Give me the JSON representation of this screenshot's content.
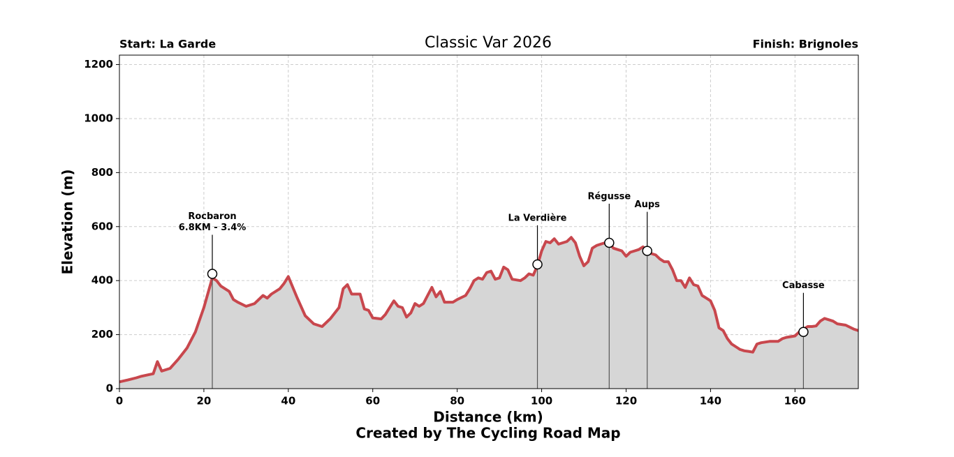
{
  "chart_data": {
    "type": "area-line",
    "title": "Classic Var 2026",
    "start_label": "Start: La Garde",
    "finish_label": "Finish: Brignoles",
    "x_label": "Distance (km)",
    "y_label": "Elevation (m)",
    "footer": "Created by The Cycling Road Map",
    "line_color": "#c8474d",
    "fill_color": "#d6d6d6",
    "grid": true,
    "xlim": [
      0,
      175
    ],
    "ylim": [
      0,
      1235
    ],
    "xticks": [
      0,
      20,
      40,
      60,
      80,
      100,
      120,
      140,
      160
    ],
    "yticks": [
      0,
      200,
      400,
      600,
      800,
      1000,
      1200
    ],
    "x": [
      0,
      2,
      4,
      5,
      7,
      8,
      9,
      10,
      12,
      14,
      16,
      18,
      20,
      22,
      23,
      24,
      26,
      27,
      28,
      30,
      32,
      34,
      35,
      36,
      38,
      39,
      40,
      42,
      44,
      46,
      48,
      50,
      52,
      53,
      54,
      55,
      57,
      58,
      59,
      60,
      62,
      63,
      64,
      65,
      66,
      67,
      68,
      69,
      70,
      71,
      72,
      73,
      74,
      75,
      76,
      77,
      78,
      79,
      80,
      82,
      83,
      84,
      85,
      86,
      87,
      88,
      89,
      90,
      91,
      92,
      93,
      95,
      96,
      97,
      98,
      99,
      100,
      101,
      102,
      103,
      104,
      106,
      107,
      108,
      109,
      110,
      111,
      112,
      113,
      114,
      115,
      116,
      117,
      118,
      119,
      120,
      121,
      122,
      123,
      124,
      125,
      126,
      127,
      128,
      129,
      130,
      131,
      132,
      133,
      134,
      135,
      136,
      137,
      138,
      139,
      140,
      141,
      142,
      143,
      144,
      145,
      146,
      147,
      148,
      149,
      150,
      151,
      152,
      154,
      156,
      157,
      158,
      160,
      161,
      162,
      163,
      164,
      165,
      166,
      167,
      168,
      169,
      170,
      172,
      174,
      175
    ],
    "values": [
      25,
      32,
      40,
      45,
      52,
      55,
      100,
      65,
      75,
      110,
      150,
      210,
      300,
      410,
      400,
      380,
      360,
      330,
      320,
      305,
      315,
      345,
      335,
      350,
      370,
      390,
      415,
      340,
      270,
      240,
      230,
      260,
      300,
      370,
      385,
      350,
      350,
      295,
      290,
      262,
      258,
      275,
      300,
      325,
      305,
      300,
      265,
      280,
      315,
      305,
      315,
      345,
      375,
      340,
      360,
      320,
      320,
      320,
      330,
      345,
      370,
      400,
      410,
      405,
      430,
      435,
      405,
      410,
      450,
      440,
      405,
      400,
      410,
      425,
      420,
      455,
      510,
      545,
      540,
      555,
      535,
      545,
      560,
      540,
      490,
      455,
      470,
      520,
      530,
      535,
      540,
      540,
      520,
      515,
      510,
      490,
      505,
      510,
      515,
      525,
      510,
      500,
      495,
      480,
      470,
      470,
      440,
      400,
      400,
      375,
      410,
      385,
      380,
      345,
      335,
      325,
      290,
      225,
      215,
      185,
      165,
      155,
      145,
      140,
      138,
      135,
      165,
      170,
      175,
      175,
      185,
      190,
      195,
      210,
      220,
      230,
      230,
      232,
      250,
      260,
      255,
      250,
      240,
      235,
      220,
      215
    ],
    "annotations": [
      {
        "x": 22,
        "y": 425,
        "label": [
          "Rocbaron",
          "6.8KM - 3.4%"
        ]
      },
      {
        "x": 99,
        "y": 460,
        "label": [
          "La Verdière"
        ]
      },
      {
        "x": 116,
        "y": 540,
        "label": [
          "Régusse"
        ]
      },
      {
        "x": 125,
        "y": 510,
        "label": [
          "Aups"
        ]
      },
      {
        "x": 162,
        "y": 210,
        "label": [
          "Cabasse"
        ]
      }
    ]
  }
}
